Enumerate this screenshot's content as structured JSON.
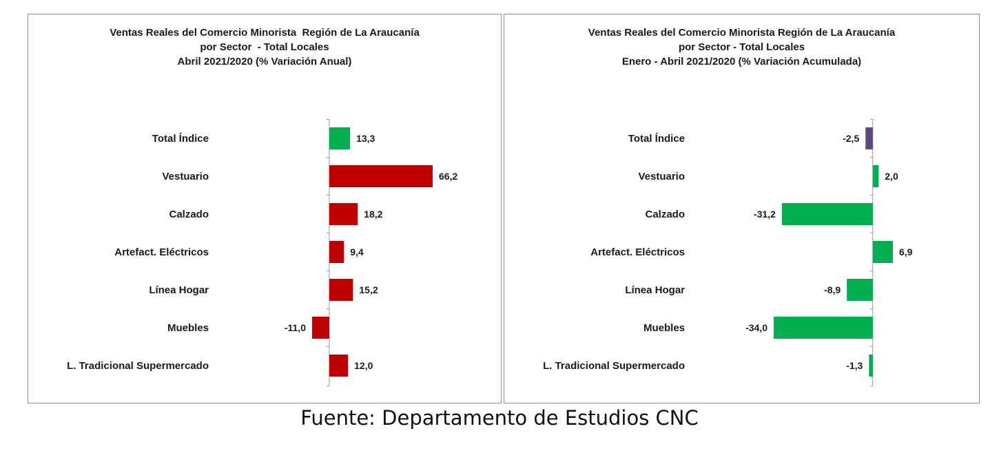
{
  "chart_data": [
    {
      "type": "bar",
      "orientation": "horizontal",
      "title_lines": [
        "Ventas Reales del Comercio Minorista  Región de La Araucanía",
        "por Sector  - Total Locales",
        "Abril 2021/2020 (% Variación Anual)"
      ],
      "categories": [
        "Total Índice",
        "Vestuario",
        "Calzado",
        "Artefact. Eléctricos",
        "Línea Hogar",
        "Muebles",
        "L. Tradicional Supermercado"
      ],
      "values": [
        13.3,
        66.2,
        18.2,
        9.4,
        15.2,
        -11.0,
        12.0
      ],
      "value_labels": [
        "13,3",
        "66,2",
        "18,2",
        "9,4",
        "15,2",
        "-11,0",
        "12,0"
      ],
      "colors": [
        "#00b050",
        "#c00000",
        "#c00000",
        "#c00000",
        "#c00000",
        "#c00000",
        "#c00000"
      ],
      "xlim": [
        -11.0,
        66.2
      ],
      "grid": false,
      "legend": "none"
    },
    {
      "type": "bar",
      "orientation": "horizontal",
      "title_lines": [
        "Ventas Reales del Comercio Minorista Región de La Araucanía",
        "por Sector - Total Locales",
        "Enero - Abril 2021/2020 (% Variación Acumulada)"
      ],
      "categories": [
        "Total Índice",
        "Vestuario",
        "Calzado",
        "Artefact. Eléctricos",
        "Línea Hogar",
        "Muebles",
        "L. Tradicional Supermercado"
      ],
      "values": [
        -2.5,
        2.0,
        -31.2,
        6.9,
        -8.9,
        -34.0,
        -1.3
      ],
      "value_labels": [
        "-2,5",
        "2,0",
        "-31,2",
        "6,9",
        "-8,9",
        "-34,0",
        "-1,3"
      ],
      "colors": [
        "#5c4a7d",
        "#00b050",
        "#00b050",
        "#00b050",
        "#00b050",
        "#00b050",
        "#00b050"
      ],
      "xlim": [
        -34.0,
        6.9
      ],
      "grid": false,
      "legend": "none"
    }
  ],
  "source": "Fuente: Departamento de Estudios CNC"
}
